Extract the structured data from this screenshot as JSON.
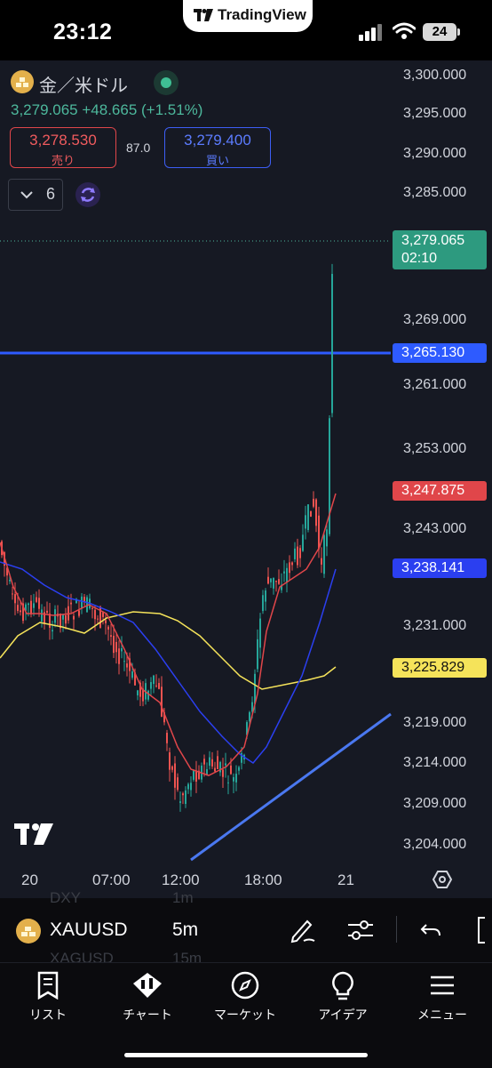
{
  "status_bar": {
    "time": "23:12",
    "app_label": "TradingView",
    "battery": "24"
  },
  "header": {
    "symbol_name": "金／米ドル",
    "price_line": "3,279.065 +48.665 (+1.51%)",
    "sell_price": "3,278.530",
    "sell_label": "売り",
    "spread": "87.0",
    "buy_price": "3,279.400",
    "buy_label": "買い",
    "indicator_count": "6"
  },
  "price_scale": {
    "ticks": [
      "3,300.000",
      "3,295.000",
      "3,290.000",
      "3,285.000",
      "3,269.000",
      "3,261.000",
      "3,253.000",
      "3,243.000",
      "3,231.000",
      "3,219.000",
      "3,214.000",
      "3,209.000",
      "3,204.000"
    ],
    "tags": {
      "last": "3,279.065",
      "countdown": "02:10",
      "level": "3,265.130",
      "red_ma": "3,247.875",
      "blue_ma": "3,238.141",
      "yellow_ma": "3,225.829"
    }
  },
  "time_axis": [
    "20",
    "07:00",
    "12:00",
    "18:00",
    "21"
  ],
  "symbol_bar": {
    "symbol": "XAUUSD",
    "interval": "5m",
    "ghost_above_symbol": "DXY",
    "ghost_above_interval": "1m",
    "ghost_below_symbol": "XAGUSD",
    "ghost_below_interval": "15m"
  },
  "nav": {
    "list": "リスト",
    "chart": "チャート",
    "market": "マーケット",
    "ideas": "アイデア",
    "menu": "メニュー"
  },
  "colors": {
    "background": "#161923",
    "up": "#26a69a",
    "down": "#ef5350",
    "level_line": "#2e5bff",
    "ma_yellow": "#f5e35a",
    "ma_blue": "#2b3ff0",
    "ma_red": "#e0464a"
  }
}
